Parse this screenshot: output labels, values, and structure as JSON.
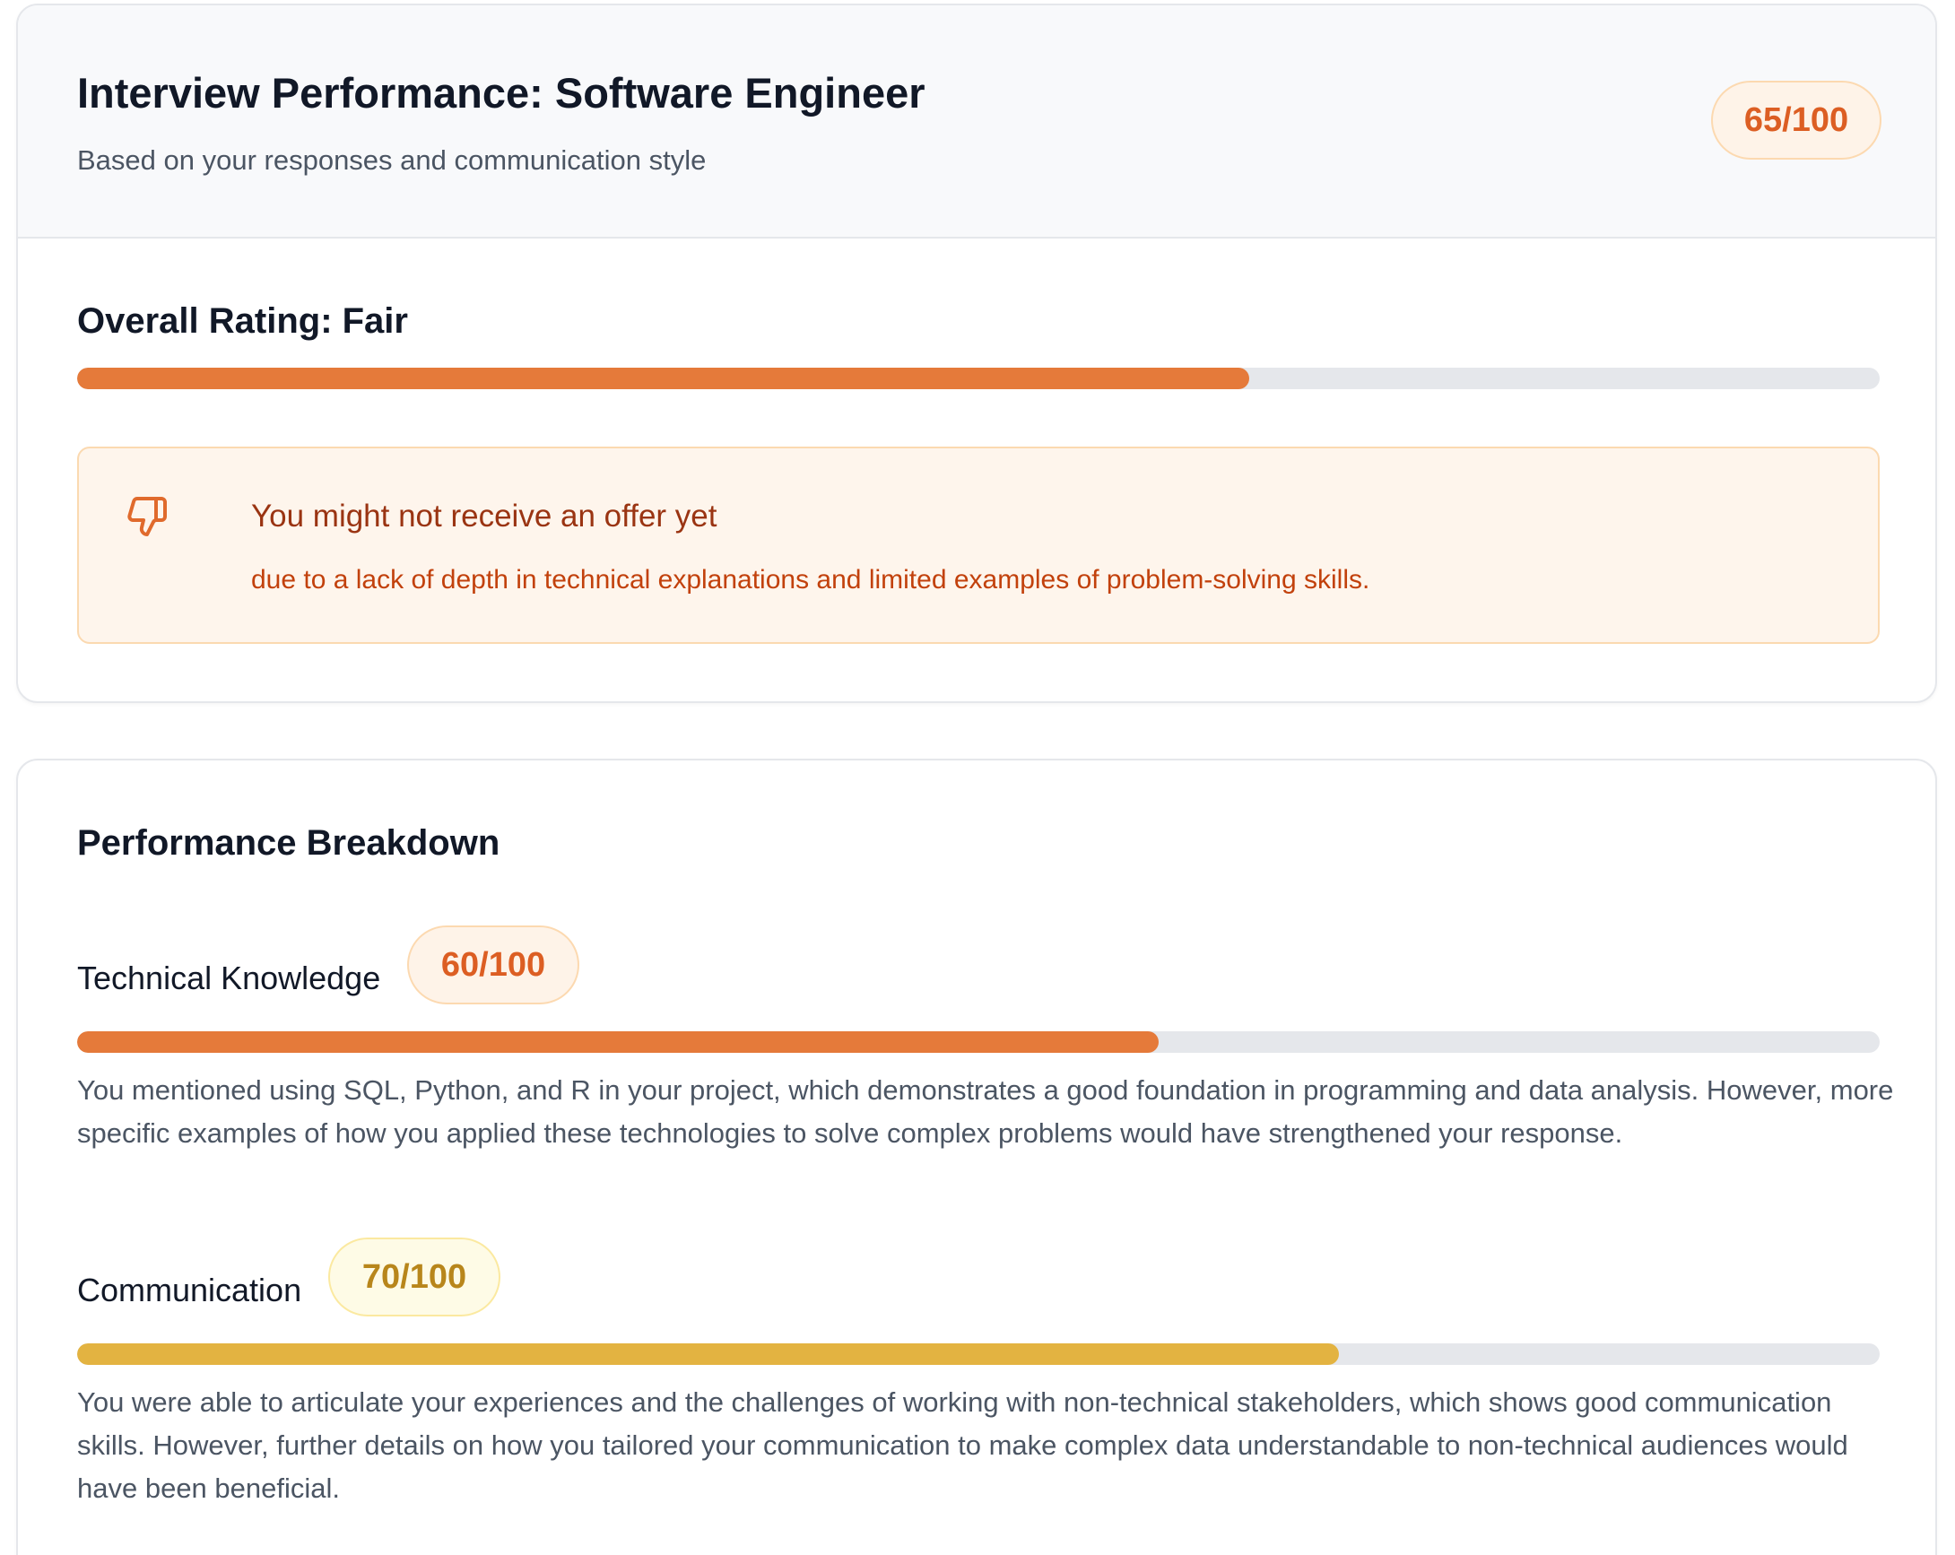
{
  "header": {
    "title": "Interview Performance: Software Engineer",
    "subtitle": "Based on your responses and communication style",
    "score_label": "65/100"
  },
  "overall": {
    "title": "Overall Rating: Fair",
    "progress": 0.65,
    "bar_color": "#e57a3a",
    "alert": {
      "icon": "thumbs-down-icon",
      "title": "You might not receive an offer yet",
      "description": "due to a lack of depth in technical explanations and limited examples of problem-solving skills."
    }
  },
  "breakdown": {
    "title": "Performance Breakdown",
    "metrics": [
      {
        "label": "Technical Knowledge",
        "score_label": "60/100",
        "progress": 0.6,
        "bar_color": "#e57a3a",
        "description": "You mentioned using SQL, Python, and R in your project, which demonstrates a good foundation in programming and data analysis. However, more specific examples of how you applied these technologies to solve complex problems would have strengthened your response."
      },
      {
        "label": "Communication",
        "score_label": "70/100",
        "progress": 0.7,
        "bar_color": "#e3b341",
        "description": "You were able to articulate your experiences and the challenges of working with non-technical stakeholders, which shows good communication skills. However, further details on how you tailored your communication to make complex data understandable to non-technical audiences would have been beneficial."
      }
    ]
  }
}
